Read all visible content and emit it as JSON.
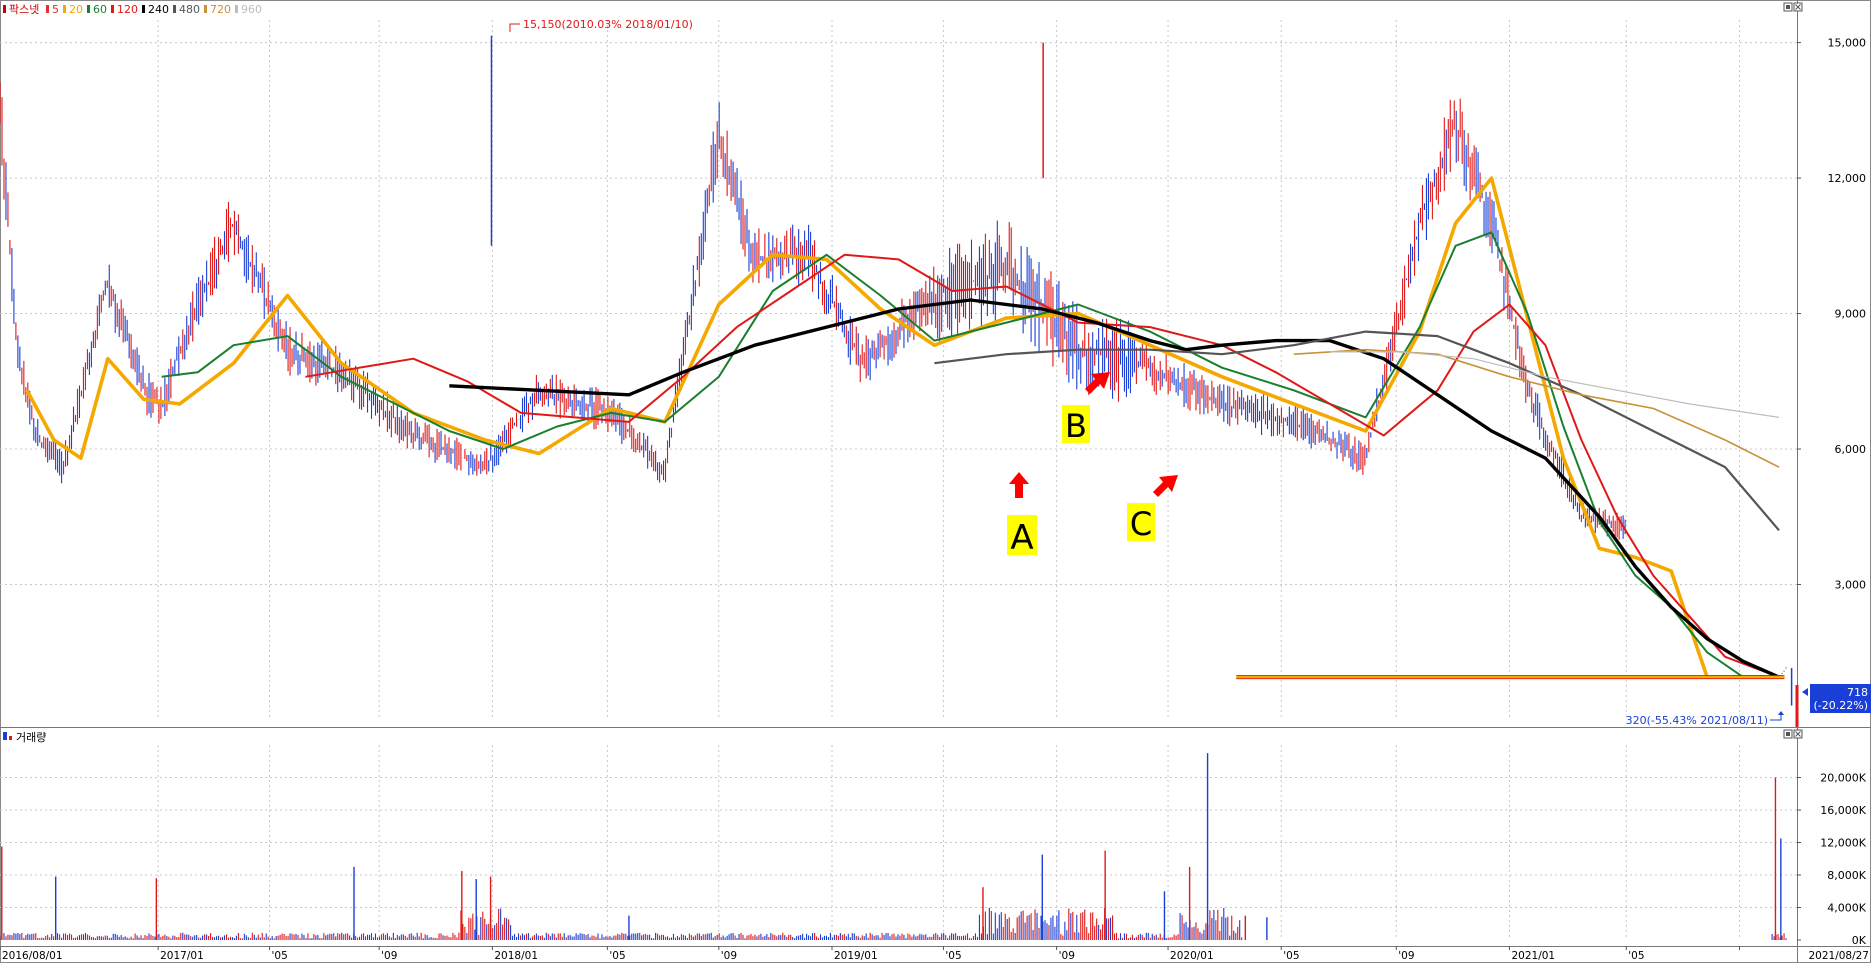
{
  "price_panel": {
    "legend": [
      {
        "label": "팍스넷",
        "color": "#cc0000"
      },
      {
        "label": "5",
        "color": "#e0302a"
      },
      {
        "label": "20",
        "color": "#f4a800"
      },
      {
        "label": "60",
        "color": "#1a7f2e"
      },
      {
        "label": "120",
        "color": "#e01818"
      },
      {
        "label": "240",
        "color": "#000000"
      },
      {
        "label": "480",
        "color": "#555555"
      },
      {
        "label": "720",
        "color": "#c9923a"
      },
      {
        "label": "960",
        "color": "#bdbdbd"
      }
    ],
    "high_label": "15,150(2010.03% 2018/01/10)",
    "low_label": "320(-55.43% 2021/08/11)",
    "current_price": "718",
    "current_change": "(-20.22%)",
    "annotations": [
      {
        "text": "A",
        "color": "#ffff00"
      },
      {
        "text": "B",
        "color": "#ffff00"
      },
      {
        "text": "C",
        "color": "#ffff00"
      }
    ]
  },
  "volume_panel": {
    "title": "거래량"
  },
  "chart_data": [
    {
      "type": "line",
      "title": "팍스넷",
      "x_tick_labels": [
        "2016/08/01",
        "2017/01",
        "'05",
        "'09",
        "2018/01",
        "'05",
        "'09",
        "2019/01",
        "'05",
        "'09",
        "2020/01",
        "'05",
        "'09",
        "2021/01",
        "'05",
        "2021/08/27"
      ],
      "y_ticks": [
        3000,
        6000,
        9000,
        12000,
        15000
      ],
      "y_tick_labels": [
        "3,000",
        "6,000",
        "9,000",
        "12,000",
        "15,000"
      ],
      "ylim": [
        0,
        15500
      ],
      "price_anchors": {
        "x": [
          0,
          0.01,
          0.02,
          0.035,
          0.06,
          0.08,
          0.09,
          0.1,
          0.13,
          0.16,
          0.19,
          0.23,
          0.27,
          0.3,
          0.34,
          0.37,
          0.4,
          0.42,
          0.45,
          0.48,
          0.52,
          0.56,
          0.6,
          0.64,
          0.68,
          0.72,
          0.76,
          0.79,
          0.81,
          0.83,
          0.85,
          0.88,
          0.91,
          0.93,
          0.95,
          0.98,
          0.99,
          0.995
        ],
        "y": [
          13500,
          8000,
          6300,
          5600,
          9700,
          7300,
          6900,
          8200,
          11000,
          8200,
          7700,
          6300,
          5600,
          7300,
          6800,
          5500,
          13000,
          10200,
          10300,
          7900,
          9400,
          10000,
          8200,
          7800,
          7000,
          6600,
          5800,
          11000,
          13200,
          11000,
          7300,
          4500,
          4200,
          3500,
          950,
          950,
          950,
          1200
        ]
      },
      "moving_averages": [
        {
          "name": "20",
          "color": "#f4a800",
          "x": [
            0.015,
            0.03,
            0.045,
            0.06,
            0.08,
            0.1,
            0.13,
            0.16,
            0.19,
            0.23,
            0.27,
            0.3,
            0.34,
            0.37,
            0.4,
            0.43,
            0.46,
            0.49,
            0.52,
            0.56,
            0.6,
            0.64,
            0.68,
            0.72,
            0.76,
            0.79,
            0.81,
            0.83,
            0.85,
            0.87,
            0.89,
            0.91,
            0.93,
            0.95,
            0.99
          ],
          "y": [
            7300,
            6200,
            5800,
            8000,
            7100,
            7000,
            7900,
            9400,
            7900,
            6800,
            6200,
            5900,
            6900,
            6600,
            9200,
            10300,
            10200,
            9100,
            8300,
            8900,
            9000,
            8300,
            7600,
            7000,
            6400,
            8600,
            11000,
            12000,
            8900,
            5800,
            3800,
            3600,
            3300,
            950,
            950
          ]
        },
        {
          "name": "60",
          "color": "#1a7f2e",
          "x": [
            0.09,
            0.11,
            0.13,
            0.16,
            0.19,
            0.22,
            0.25,
            0.28,
            0.31,
            0.34,
            0.37,
            0.4,
            0.43,
            0.46,
            0.49,
            0.52,
            0.56,
            0.6,
            0.64,
            0.68,
            0.72,
            0.76,
            0.79,
            0.81,
            0.83,
            0.85,
            0.87,
            0.89,
            0.91,
            0.93,
            0.95,
            0.97
          ],
          "y": [
            7600,
            7700,
            8300,
            8500,
            7600,
            7000,
            6400,
            6000,
            6500,
            6800,
            6600,
            7600,
            9500,
            10300,
            9400,
            8400,
            8800,
            9200,
            8600,
            7800,
            7300,
            6700,
            8700,
            10500,
            10800,
            9000,
            6500,
            4400,
            3200,
            2500,
            1500,
            950
          ]
        },
        {
          "name": "120",
          "color": "#e01818",
          "x": [
            0.17,
            0.2,
            0.23,
            0.26,
            0.29,
            0.32,
            0.35,
            0.38,
            0.41,
            0.44,
            0.47,
            0.5,
            0.53,
            0.56,
            0.6,
            0.64,
            0.68,
            0.71,
            0.74,
            0.77,
            0.8,
            0.82,
            0.84,
            0.86,
            0.88,
            0.9,
            0.92,
            0.94,
            0.96,
            0.99
          ],
          "y": [
            7600,
            7800,
            8000,
            7500,
            6800,
            6700,
            6600,
            7600,
            8700,
            9500,
            10300,
            10200,
            9500,
            9600,
            8800,
            8700,
            8300,
            7700,
            7000,
            6300,
            7300,
            8600,
            9200,
            8300,
            6200,
            4500,
            3200,
            2300,
            1400,
            950
          ]
        },
        {
          "name": "240",
          "color": "#000000",
          "x": [
            0.25,
            0.3,
            0.35,
            0.38,
            0.42,
            0.46,
            0.5,
            0.54,
            0.58,
            0.61,
            0.64,
            0.66,
            0.68,
            0.71,
            0.74,
            0.77,
            0.8,
            0.83,
            0.86,
            0.89,
            0.91,
            0.93,
            0.95,
            0.97,
            0.99
          ],
          "y": [
            7400,
            7300,
            7200,
            7700,
            8300,
            8700,
            9100,
            9300,
            9100,
            8800,
            8400,
            8200,
            8300,
            8400,
            8400,
            8000,
            7200,
            6400,
            5800,
            4500,
            3400,
            2500,
            1800,
            1300,
            950
          ]
        },
        {
          "name": "480",
          "color": "#555555",
          "x": [
            0.52,
            0.56,
            0.6,
            0.64,
            0.68,
            0.72,
            0.76,
            0.8,
            0.84,
            0.88,
            0.92,
            0.96,
            0.99
          ],
          "y": [
            7900,
            8100,
            8200,
            8200,
            8100,
            8300,
            8600,
            8500,
            7900,
            7200,
            6400,
            5600,
            4200
          ]
        },
        {
          "name": "720",
          "color": "#c9923a",
          "x": [
            0.72,
            0.76,
            0.8,
            0.84,
            0.88,
            0.92,
            0.96,
            0.99
          ],
          "y": [
            8100,
            8200,
            8100,
            7600,
            7200,
            6900,
            6200,
            5600
          ]
        },
        {
          "name": "960",
          "color": "#bdbdbd",
          "x": [
            0.74,
            0.78,
            0.82,
            0.86,
            0.9,
            0.94,
            0.99
          ],
          "y": [
            8150,
            8150,
            8000,
            7600,
            7300,
            7000,
            6700
          ]
        }
      ]
    },
    {
      "type": "bar",
      "title": "거래량",
      "y_ticks": [
        0,
        4000,
        8000,
        12000,
        16000,
        20000
      ],
      "y_tick_labels": [
        "0K",
        "4,000K",
        "8,000K",
        "12,000K",
        "16,000K",
        "20,000K"
      ],
      "ylim": [
        0,
        24000
      ],
      "spikes": [
        {
          "x": 0.001,
          "v": 11500
        },
        {
          "x": 0.031,
          "v": 7800
        },
        {
          "x": 0.087,
          "v": 7600
        },
        {
          "x": 0.197,
          "v": 9000
        },
        {
          "x": 0.257,
          "v": 8500
        },
        {
          "x": 0.265,
          "v": 7500
        },
        {
          "x": 0.273,
          "v": 7800
        },
        {
          "x": 0.35,
          "v": 3000
        },
        {
          "x": 0.547,
          "v": 6500
        },
        {
          "x": 0.58,
          "v": 10500
        },
        {
          "x": 0.615,
          "v": 11000
        },
        {
          "x": 0.648,
          "v": 6000
        },
        {
          "x": 0.662,
          "v": 9000
        },
        {
          "x": 0.672,
          "v": 23000
        },
        {
          "x": 0.693,
          "v": 3000
        },
        {
          "x": 0.705,
          "v": 2800
        },
        {
          "x": 0.988,
          "v": 20000
        },
        {
          "x": 0.991,
          "v": 12500
        }
      ]
    }
  ]
}
